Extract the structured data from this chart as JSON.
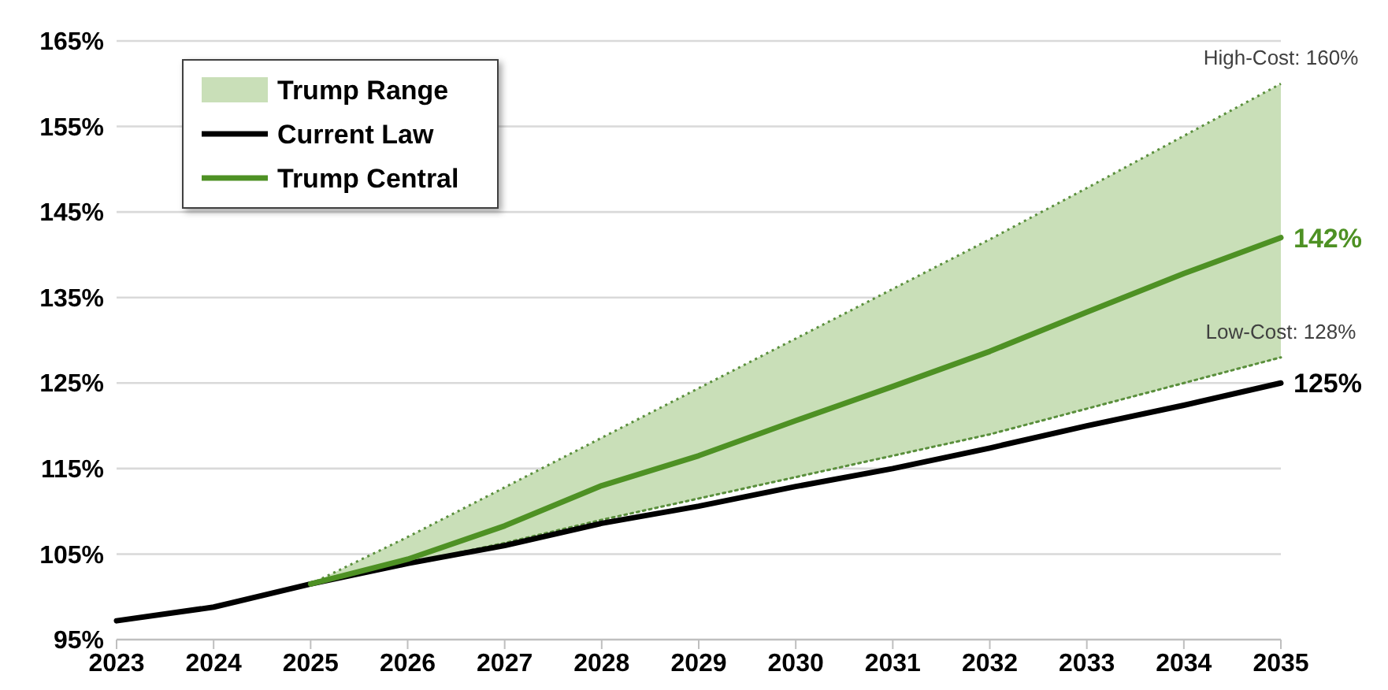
{
  "chart_data": {
    "type": "line",
    "xlim": [
      2023,
      2035
    ],
    "xticks": [
      2023,
      2024,
      2025,
      2026,
      2027,
      2028,
      2029,
      2030,
      2031,
      2032,
      2033,
      2034,
      2035
    ],
    "ylim": [
      95,
      165
    ],
    "yticks": [
      {
        "value": 95,
        "label": "95%"
      },
      {
        "value": 105,
        "label": "105%"
      },
      {
        "value": 115,
        "label": "115%"
      },
      {
        "value": 125,
        "label": "125%"
      },
      {
        "value": 135,
        "label": "135%"
      },
      {
        "value": 145,
        "label": "145%"
      },
      {
        "value": 155,
        "label": "155%"
      },
      {
        "value": 165,
        "label": "165%"
      }
    ],
    "grid": "y",
    "legend": "top left",
    "series": [
      {
        "name": "Trump Range",
        "type": "area",
        "color": "#c9dfb8",
        "x": [
          2025,
          2026,
          2027,
          2028,
          2029,
          2030,
          2031,
          2032,
          2033,
          2034,
          2035
        ],
        "values": [
          101.5,
          107,
          112.8,
          118.6,
          124.4,
          130.2,
          136,
          141.8,
          147.8,
          153.9,
          160
        ]
      },
      {
        "type": "line",
        "color": "#5a8f3c",
        "line_style": "dotted",
        "x": [
          2025,
          2026,
          2027,
          2028,
          2029,
          2030,
          2031,
          2032,
          2033,
          2034,
          2035
        ],
        "values": [
          101.5,
          103.9,
          106.3,
          109,
          111.5,
          114,
          116.5,
          119,
          122,
          125,
          128
        ]
      },
      {
        "name": "Current Law",
        "color": "#000000",
        "x": [
          2023,
          2024,
          2025,
          2026,
          2027,
          2028,
          2029,
          2030,
          2031,
          2032,
          2033,
          2034,
          2035
        ],
        "values": [
          97.2,
          98.8,
          101.5,
          103.9,
          106,
          108.6,
          110.6,
          112.9,
          115,
          117.4,
          120,
          122.4,
          125
        ],
        "value_labels": [
          null,
          null,
          null,
          null,
          null,
          null,
          null,
          null,
          null,
          null,
          null,
          null,
          "125%"
        ]
      },
      {
        "name": "Trump Central",
        "color": "#4e9124",
        "x": [
          2025,
          2026,
          2027,
          2028,
          2029,
          2030,
          2031,
          2032,
          2033,
          2034,
          2035
        ],
        "values": [
          101.5,
          104.4,
          108.3,
          113,
          116.5,
          120.6,
          124.6,
          128.7,
          133.3,
          137.8,
          142
        ],
        "value_labels": [
          null,
          null,
          null,
          null,
          null,
          null,
          null,
          null,
          null,
          null,
          "142%"
        ]
      }
    ],
    "annotations": [
      {
        "text": "High-Cost: 160%",
        "x": 2035,
        "y": 160
      },
      {
        "text": "Low-Cost: 128%",
        "x": 2035,
        "y": 128
      }
    ]
  }
}
